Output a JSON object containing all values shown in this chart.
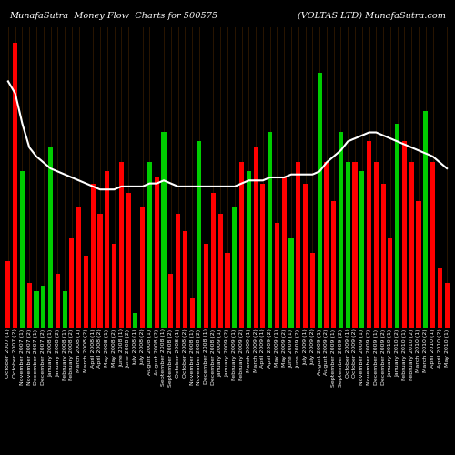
{
  "title_left": "MunafaSutra  Money Flow  Charts for 500575",
  "title_right": "(VOLTAS LTD) MunafaSutra.com",
  "background_color": "#000000",
  "bar_colors": [
    "red",
    "red",
    "green",
    "red",
    "green",
    "green",
    "green",
    "red",
    "green",
    "red",
    "red",
    "red",
    "red",
    "red",
    "red",
    "red",
    "red",
    "red",
    "green",
    "red",
    "green",
    "red",
    "green",
    "red",
    "red",
    "red",
    "red",
    "green",
    "red",
    "red",
    "red",
    "red",
    "green",
    "red",
    "green",
    "red",
    "red",
    "green",
    "red",
    "red",
    "green",
    "red",
    "red",
    "red",
    "green",
    "red",
    "red",
    "green",
    "green",
    "red",
    "green",
    "red",
    "red",
    "red",
    "red",
    "green",
    "red",
    "red",
    "red",
    "green",
    "red",
    "red",
    "red"
  ],
  "bar_heights": [
    22,
    95,
    52,
    15,
    12,
    14,
    60,
    18,
    12,
    30,
    40,
    24,
    48,
    38,
    52,
    28,
    55,
    45,
    5,
    40,
    55,
    50,
    65,
    18,
    38,
    32,
    10,
    62,
    28,
    45,
    38,
    25,
    40,
    55,
    52,
    60,
    48,
    65,
    35,
    50,
    30,
    55,
    48,
    25,
    85,
    55,
    42,
    65,
    55,
    55,
    52,
    62,
    55,
    48,
    30,
    68,
    62,
    55,
    42,
    72,
    55,
    20,
    15
  ],
  "line_values": [
    82,
    78,
    68,
    60,
    57,
    55,
    53,
    52,
    51,
    50,
    49,
    48,
    47,
    46,
    46,
    46,
    47,
    47,
    47,
    47,
    48,
    48,
    49,
    48,
    47,
    47,
    47,
    47,
    47,
    47,
    47,
    47,
    47,
    48,
    49,
    49,
    49,
    50,
    50,
    50,
    51,
    51,
    51,
    51,
    52,
    55,
    57,
    59,
    62,
    63,
    64,
    65,
    65,
    64,
    63,
    62,
    61,
    60,
    59,
    58,
    57,
    55,
    53
  ],
  "grid_color": "#2a1500",
  "bar_color_red": "#ff0000",
  "bar_color_green": "#00cc00",
  "line_color": "#ffffff",
  "n_bars": 63,
  "title_fontsize": 7,
  "xlabel_fontsize": 4.5
}
